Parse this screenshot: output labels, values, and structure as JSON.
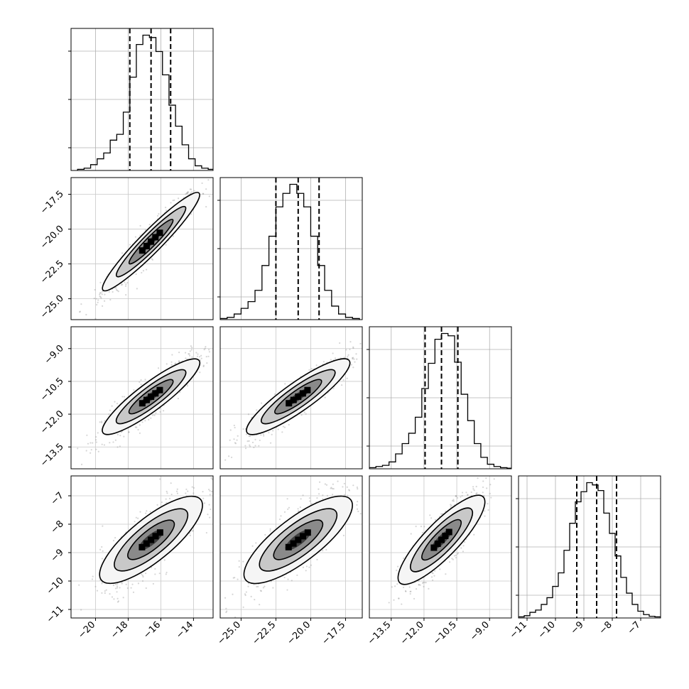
{
  "chart_data": {
    "type": "corner",
    "parameters": 4,
    "grid": true,
    "quantile_lines": "dashed",
    "quantiles": [
      0.16,
      0.5,
      0.84
    ],
    "parameter_ranges": [
      [
        -21.5,
        -12.8
      ],
      [
        -26.5,
        -16.3
      ],
      [
        -14.5,
        -8.0
      ],
      [
        -11.3,
        -6.3
      ]
    ],
    "x_tick_labels": [
      [
        "−20",
        "−18",
        "−16",
        "−14"
      ],
      [
        "−25.0",
        "−22.5",
        "−20.0",
        "−17.5"
      ],
      [
        "−13.5",
        "−12.0",
        "−10.5",
        "−9.0"
      ],
      [
        "−11",
        "−10",
        "−9",
        "−8",
        "−7"
      ]
    ],
    "x_tick_values": [
      [
        -20,
        -18,
        -16,
        -14
      ],
      [
        -25.0,
        -22.5,
        -20.0,
        -17.5
      ],
      [
        -13.5,
        -12.0,
        -10.5,
        -9.0
      ],
      [
        -11,
        -10,
        -9,
        -8,
        -7
      ]
    ],
    "y_tick_labels": [
      null,
      [
        "−17.5",
        "−20.0",
        "−22.5",
        "−25.0"
      ],
      [
        "−9.0",
        "−10.5",
        "−12.0",
        "−13.5"
      ],
      [
        "−7",
        "−8",
        "−9",
        "−10",
        "−11"
      ]
    ],
    "y_tick_values": [
      null,
      [
        -17.5,
        -20.0,
        -22.5,
        -25.0
      ],
      [
        -9.0,
        -10.5,
        -12.0,
        -13.5
      ],
      [
        -7,
        -8,
        -9,
        -10,
        -11
      ]
    ],
    "histograms": [
      {
        "parameter": 0,
        "quantile_values": [
          -17.9,
          -16.6,
          -15.4
        ],
        "bin_edges": [
          -21.1,
          -20.7,
          -20.3,
          -19.9,
          -19.5,
          -19.1,
          -18.7,
          -18.3,
          -17.9,
          -17.5,
          -17.1,
          -16.7,
          -16.3,
          -15.9,
          -15.5,
          -15.1,
          -14.7,
          -14.3,
          -13.9,
          -13.5,
          -13.1,
          -12.7
        ],
        "counts": [
          2,
          4,
          10,
          20,
          30,
          52,
          62,
          100,
          160,
          216,
          232,
          228,
          204,
          164,
          112,
          76,
          44,
          20,
          8,
          4,
          2
        ]
      },
      {
        "parameter": 1,
        "quantile_values": [
          -22.5,
          -20.9,
          -19.4
        ],
        "bin_edges": [
          -26.5,
          -26.0,
          -25.5,
          -25.0,
          -24.5,
          -24.0,
          -23.5,
          -23.0,
          -22.5,
          -22.0,
          -21.5,
          -21.0,
          -20.5,
          -20.0,
          -19.5,
          -19.0,
          -18.5,
          -18.0,
          -17.5,
          -17.0,
          -16.5
        ],
        "counts": [
          2,
          4,
          10,
          20,
          32,
          52,
          96,
          148,
          200,
          224,
          240,
          224,
          200,
          148,
          96,
          52,
          24,
          10,
          4,
          2
        ]
      },
      {
        "parameter": 2,
        "quantile_values": [
          -11.95,
          -11.2,
          -10.45
        ],
        "bin_edges": [
          -14.5,
          -14.2,
          -13.9,
          -13.6,
          -13.3,
          -13.0,
          -12.7,
          -12.4,
          -12.1,
          -11.8,
          -11.5,
          -11.2,
          -10.9,
          -10.6,
          -10.3,
          -10.0,
          -9.7,
          -9.4,
          -9.1,
          -8.8,
          -8.5,
          -8.2,
          -7.9
        ],
        "counts": [
          2,
          4,
          6,
          12,
          26,
          44,
          62,
          90,
          140,
          184,
          226,
          236,
          232,
          186,
          130,
          84,
          44,
          20,
          8,
          4,
          2,
          1
        ]
      },
      {
        "parameter": 3,
        "quantile_values": [
          -9.25,
          -8.55,
          -7.85
        ],
        "bin_edges": [
          -11.3,
          -11.1,
          -10.9,
          -10.7,
          -10.5,
          -10.3,
          -10.1,
          -9.9,
          -9.7,
          -9.5,
          -9.3,
          -9.1,
          -8.9,
          -8.7,
          -8.5,
          -8.3,
          -8.1,
          -7.9,
          -7.7,
          -7.5,
          -7.3,
          -7.1,
          -6.9,
          -6.7,
          -6.5,
          -6.3
        ],
        "counts": [
          2,
          4,
          10,
          14,
          24,
          36,
          56,
          80,
          120,
          168,
          206,
          224,
          240,
          236,
          226,
          186,
          150,
          110,
          72,
          44,
          24,
          12,
          6,
          3,
          2
        ]
      }
    ],
    "scatter_panels": [
      {
        "x_param": 0,
        "y_param": 1,
        "center": [
          -16.6,
          -20.9
        ],
        "sd": [
          1.2,
          1.5
        ],
        "corr": 0.95
      },
      {
        "x_param": 0,
        "y_param": 2,
        "center": [
          -16.6,
          -11.2
        ],
        "sd": [
          1.2,
          0.75
        ],
        "corr": 0.9
      },
      {
        "x_param": 1,
        "y_param": 2,
        "center": [
          -20.9,
          -11.2
        ],
        "sd": [
          1.5,
          0.75
        ],
        "corr": 0.9
      },
      {
        "x_param": 0,
        "y_param": 3,
        "center": [
          -16.6,
          -8.55
        ],
        "sd": [
          1.2,
          0.7
        ],
        "corr": 0.8
      },
      {
        "x_param": 1,
        "y_param": 3,
        "center": [
          -20.9,
          -8.55
        ],
        "sd": [
          1.5,
          0.7
        ],
        "corr": 0.8
      },
      {
        "x_param": 2,
        "y_param": 3,
        "center": [
          -11.2,
          -8.55
        ],
        "sd": [
          0.75,
          0.7
        ],
        "corr": 0.85
      }
    ]
  }
}
